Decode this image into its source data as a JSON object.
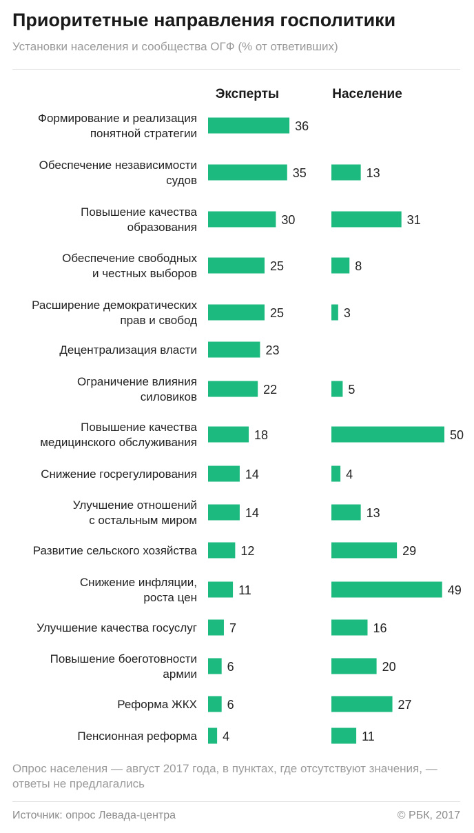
{
  "header": {
    "title": "Приоритетные направления госполитики",
    "subtitle": "Установки населения и сообщества ОГФ (% от ответивших)"
  },
  "footer": {
    "note": "Опрос населения — август 2017 года, в пунктах, где отсутствуют значения, — ответы не предлагались",
    "source": "Источник: опрос Левада-центра",
    "credit": "© РБК, 2017"
  },
  "colors": {
    "bar": "#1dba7f",
    "text": "#222222",
    "muted": "#9a9a9a"
  },
  "chart_data": {
    "type": "bar",
    "orientation": "horizontal",
    "title": "Приоритетные направления госполитики",
    "subtitle": "Установки населения и сообщества ОГФ (% от ответивших)",
    "categories": [
      [
        "Формирование и реализация",
        "понятной стратегии"
      ],
      [
        "Обеспечение независимости",
        "судов"
      ],
      [
        "Повышение качества",
        "образования"
      ],
      [
        "Обеспечение свободных",
        "и честных выборов"
      ],
      [
        "Расширение демократических",
        "прав и свобод"
      ],
      [
        "Децентрализация власти"
      ],
      [
        "Ограничение влияния",
        "силовиков"
      ],
      [
        "Повышение качества",
        "медицинского обслуживания"
      ],
      [
        "Снижение госрегулирования"
      ],
      [
        "Улучшение отношений",
        "с остальным миром"
      ],
      [
        "Развитие сельского хозяйства"
      ],
      [
        "Снижение инфляции,",
        "роста цен"
      ],
      [
        "Улучшение качества госуслуг"
      ],
      [
        "Повышение боеготовности",
        "армии"
      ],
      [
        "Реформа ЖКХ"
      ],
      [
        "Пенсионная реформа"
      ]
    ],
    "series": [
      {
        "name": "Эксперты",
        "values": [
          36,
          35,
          30,
          25,
          25,
          23,
          22,
          18,
          14,
          14,
          12,
          11,
          7,
          6,
          6,
          4
        ]
      },
      {
        "name": "Население",
        "values": [
          null,
          13,
          31,
          8,
          3,
          null,
          5,
          50,
          4,
          13,
          29,
          49,
          16,
          20,
          27,
          11
        ]
      }
    ],
    "xlim": [
      0,
      50
    ],
    "grid": false,
    "legend": "column headers above bars"
  }
}
